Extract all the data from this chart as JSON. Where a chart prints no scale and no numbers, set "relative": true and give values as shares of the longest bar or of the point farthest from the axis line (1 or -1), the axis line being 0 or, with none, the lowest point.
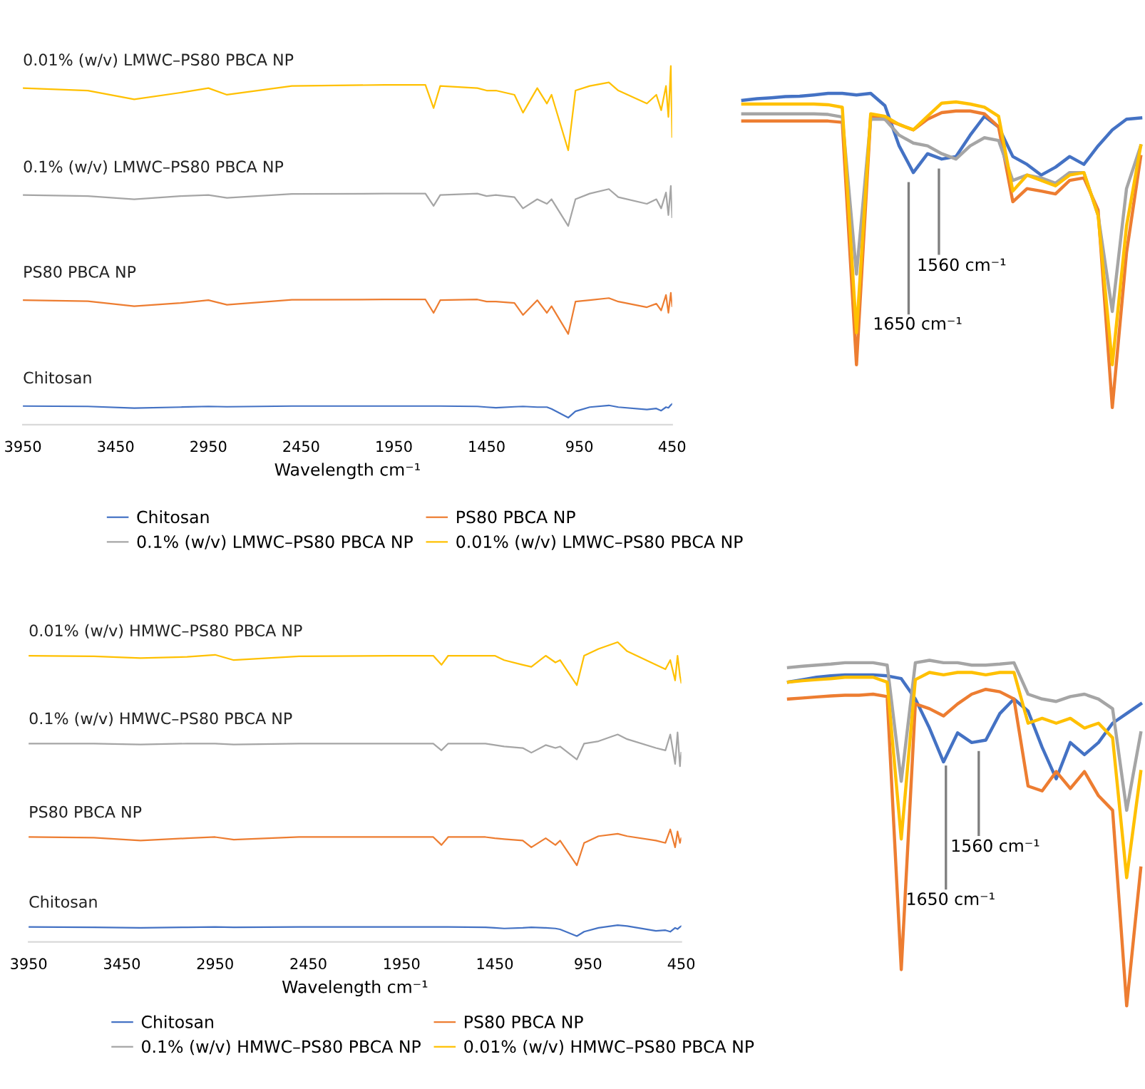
{
  "chart_data": [
    {
      "type": "line",
      "relative": true,
      "xlim": [
        3950,
        450
      ],
      "xticks": [
        3950,
        3450,
        2950,
        2450,
        1950,
        1450,
        950,
        450
      ],
      "xlabel": "Wavelength cm⁻¹",
      "legend": "bottom",
      "x": [
        3950,
        3600,
        3350,
        3100,
        2950,
        2850,
        2500,
        2000,
        1780,
        1736,
        1700,
        1500,
        1450,
        1400,
        1300,
        1254,
        1177,
        1125,
        1100,
        1010,
        971,
        894,
        791,
        740,
        586,
        535,
        509,
        483,
        470,
        457,
        450
      ],
      "series": [
        {
          "name": "Chitosan",
          "color": "#4472c4",
          "values": [
            0.033,
            0.032,
            0.027,
            0.03,
            0.032,
            0.031,
            0.033,
            0.033,
            0.033,
            0.033,
            0.033,
            0.032,
            0.03,
            0.028,
            0.031,
            0.032,
            0.03,
            0.03,
            0.025,
            0.0,
            0.018,
            0.03,
            0.035,
            0.03,
            0.023,
            0.026,
            0.02,
            0.03,
            0.028,
            0.036,
            0.039
          ]
        },
        {
          "name": "PS80 PBCA NP",
          "color": "#ed7d31",
          "values": [
            0.334,
            0.331,
            0.317,
            0.326,
            0.334,
            0.321,
            0.335,
            0.336,
            0.336,
            0.298,
            0.334,
            0.336,
            0.33,
            0.33,
            0.326,
            0.292,
            0.334,
            0.298,
            0.317,
            0.238,
            0.33,
            0.334,
            0.34,
            0.33,
            0.314,
            0.324,
            0.305,
            0.349,
            0.298,
            0.355,
            0.317
          ]
        },
        {
          "name": "0.1% (w/v) LMWC–PS80 PBCA NP",
          "color": "#a5a5a5",
          "values": [
            0.633,
            0.63,
            0.621,
            0.63,
            0.633,
            0.625,
            0.636,
            0.637,
            0.637,
            0.602,
            0.633,
            0.637,
            0.63,
            0.633,
            0.627,
            0.595,
            0.621,
            0.608,
            0.621,
            0.545,
            0.621,
            0.637,
            0.65,
            0.627,
            0.608,
            0.621,
            0.595,
            0.64,
            0.576,
            0.659,
            0.57
          ]
        },
        {
          "name": "0.01% (w/v) LMWC–PS80 PBCA NP",
          "color": "#ffc000",
          "values": [
            0.937,
            0.93,
            0.905,
            0.924,
            0.937,
            0.918,
            0.943,
            0.946,
            0.946,
            0.88,
            0.943,
            0.937,
            0.93,
            0.93,
            0.918,
            0.867,
            0.937,
            0.893,
            0.918,
            0.76,
            0.93,
            0.943,
            0.953,
            0.93,
            0.893,
            0.918,
            0.874,
            0.943,
            0.855,
            1.0,
            0.798
          ]
        }
      ]
    },
    {
      "type": "line",
      "relative": true,
      "categories": [
        null,
        null,
        null,
        null,
        null,
        null,
        null,
        null,
        null,
        null,
        null,
        null,
        null,
        null,
        null,
        null,
        null,
        null,
        null,
        null,
        null,
        null,
        null,
        null,
        null,
        null,
        null,
        null,
        null
      ],
      "annotations": [
        "1650 cm⁻¹",
        "1560 cm⁻¹"
      ],
      "series": [
        {
          "color": "#4472c4",
          "values": [
            0.978,
            0.983,
            0.986,
            0.99,
            0.991,
            0.995,
            1.0,
            1.0,
            0.995,
            1.0,
            0.961,
            0.833,
            0.748,
            0.808,
            0.791,
            0.799,
            0.867,
            0.927,
            0.893,
            0.799,
            0.774,
            0.74,
            0.765,
            0.799,
            0.774,
            0.833,
            0.884,
            0.918,
            0.922
          ]
        },
        {
          "color": "#ed7d31",
          "values": [
            0.912,
            0.912,
            0.912,
            0.912,
            0.912,
            0.912,
            0.912,
            0.908,
            0.136,
            0.927,
            0.918,
            0.901,
            0.884,
            0.918,
            0.939,
            0.944,
            0.944,
            0.935,
            0.893,
            0.655,
            0.697,
            0.689,
            0.68,
            0.723,
            0.731,
            0.629,
            0.0,
            0.493,
            0.799
          ]
        },
        {
          "color": "#a5a5a5",
          "values": [
            0.935,
            0.935,
            0.935,
            0.935,
            0.935,
            0.935,
            0.933,
            0.925,
            0.425,
            0.918,
            0.918,
            0.867,
            0.842,
            0.833,
            0.808,
            0.791,
            0.833,
            0.859,
            0.85,
            0.723,
            0.74,
            0.731,
            0.714,
            0.748,
            0.748,
            0.612,
            0.306,
            0.697,
            0.833
          ]
        },
        {
          "color": "#ffc000",
          "values": [
            0.966,
            0.966,
            0.966,
            0.966,
            0.966,
            0.966,
            0.964,
            0.956,
            0.238,
            0.935,
            0.927,
            0.901,
            0.884,
            0.927,
            0.969,
            0.973,
            0.966,
            0.956,
            0.927,
            0.689,
            0.74,
            0.723,
            0.706,
            0.74,
            0.748,
            0.612,
            0.136,
            0.578,
            0.833
          ]
        }
      ]
    },
    {
      "type": "line",
      "relative": true,
      "xlim": [
        3950,
        450
      ],
      "xticks": [
        3950,
        3450,
        2950,
        2450,
        1950,
        1450,
        950,
        450
      ],
      "xlabel": "Wavelength cm⁻¹",
      "legend": "bottom",
      "x": [
        3950,
        3600,
        3350,
        3100,
        2950,
        2850,
        2500,
        2000,
        1780,
        1736,
        1700,
        1500,
        1450,
        1400,
        1300,
        1254,
        1177,
        1125,
        1100,
        1010,
        971,
        894,
        791,
        740,
        586,
        535,
        509,
        483,
        470,
        457,
        450
      ],
      "series": [
        {
          "name": "Chitosan",
          "color": "#4472c4",
          "values": [
            0.031,
            0.03,
            0.028,
            0.03,
            0.031,
            0.03,
            0.031,
            0.031,
            0.031,
            0.031,
            0.031,
            0.03,
            0.028,
            0.026,
            0.028,
            0.03,
            0.028,
            0.026,
            0.023,
            0.0,
            0.015,
            0.028,
            0.037,
            0.034,
            0.018,
            0.02,
            0.015,
            0.028,
            0.024,
            0.031,
            0.034
          ]
        },
        {
          "name": "PS80 PBCA NP",
          "color": "#ed7d31",
          "values": [
            0.337,
            0.335,
            0.325,
            0.333,
            0.337,
            0.328,
            0.337,
            0.337,
            0.337,
            0.31,
            0.337,
            0.337,
            0.333,
            0.33,
            0.325,
            0.302,
            0.333,
            0.31,
            0.325,
            0.241,
            0.317,
            0.34,
            0.348,
            0.34,
            0.325,
            0.317,
            0.363,
            0.302,
            0.356,
            0.317,
            0.333
          ]
        },
        {
          "name": "0.1% (w/v) HMWC–PS80 PBCA NP",
          "color": "#a5a5a5",
          "values": [
            0.655,
            0.655,
            0.652,
            0.655,
            0.655,
            0.652,
            0.655,
            0.655,
            0.655,
            0.632,
            0.655,
            0.655,
            0.65,
            0.645,
            0.64,
            0.624,
            0.65,
            0.64,
            0.645,
            0.601,
            0.655,
            0.663,
            0.686,
            0.67,
            0.64,
            0.632,
            0.686,
            0.586,
            0.693,
            0.578,
            0.624
          ]
        },
        {
          "name": "0.01% (w/v) HMWC–PS80 PBCA NP",
          "color": "#ffc000",
          "values": [
            0.954,
            0.952,
            0.946,
            0.95,
            0.957,
            0.939,
            0.952,
            0.954,
            0.954,
            0.923,
            0.954,
            0.954,
            0.954,
            0.939,
            0.923,
            0.916,
            0.954,
            0.931,
            0.939,
            0.854,
            0.954,
            0.977,
            1.0,
            0.969,
            0.923,
            0.908,
            0.939,
            0.87,
            0.954,
            0.885,
            0.862
          ]
        }
      ]
    },
    {
      "type": "line",
      "relative": true,
      "categories": [
        null,
        null,
        null,
        null,
        null,
        null,
        null,
        null,
        null,
        null,
        null,
        null,
        null,
        null,
        null,
        null,
        null,
        null,
        null,
        null,
        null,
        null,
        null,
        null,
        null,
        null
      ],
      "annotations": [
        "1650 cm⁻¹",
        "1560 cm⁻¹"
      ],
      "series": [
        {
          "color": "#4472c4",
          "values": [
            0.937,
            0.944,
            0.951,
            0.955,
            0.958,
            0.958,
            0.958,
            0.955,
            0.947,
            0.888,
            0.804,
            0.706,
            0.79,
            0.762,
            0.769,
            0.846,
            0.888,
            0.853,
            0.748,
            0.657,
            0.762,
            0.727,
            0.762,
            0.818,
            0.846,
            0.874
          ]
        },
        {
          "color": "#ed7d31",
          "values": [
            0.888,
            0.891,
            0.894,
            0.897,
            0.899,
            0.899,
            0.902,
            0.895,
            0.105,
            0.874,
            0.86,
            0.839,
            0.874,
            0.902,
            0.916,
            0.909,
            0.888,
            0.636,
            0.622,
            0.678,
            0.629,
            0.678,
            0.608,
            0.566,
            0.0,
            0.399
          ]
        },
        {
          "color": "#a5a5a5",
          "values": [
            0.979,
            0.983,
            0.986,
            0.989,
            0.993,
            0.993,
            0.993,
            0.986,
            0.65,
            0.993,
            1.0,
            0.993,
            0.993,
            0.986,
            0.986,
            0.989,
            0.993,
            0.902,
            0.888,
            0.881,
            0.895,
            0.902,
            0.888,
            0.86,
            0.566,
            0.79
          ]
        },
        {
          "color": "#ffc000",
          "values": [
            0.937,
            0.941,
            0.944,
            0.947,
            0.951,
            0.951,
            0.951,
            0.937,
            0.483,
            0.944,
            0.965,
            0.958,
            0.965,
            0.965,
            0.958,
            0.965,
            0.965,
            0.818,
            0.832,
            0.818,
            0.832,
            0.804,
            0.818,
            0.776,
            0.371,
            0.678
          ]
        }
      ]
    }
  ]
}
